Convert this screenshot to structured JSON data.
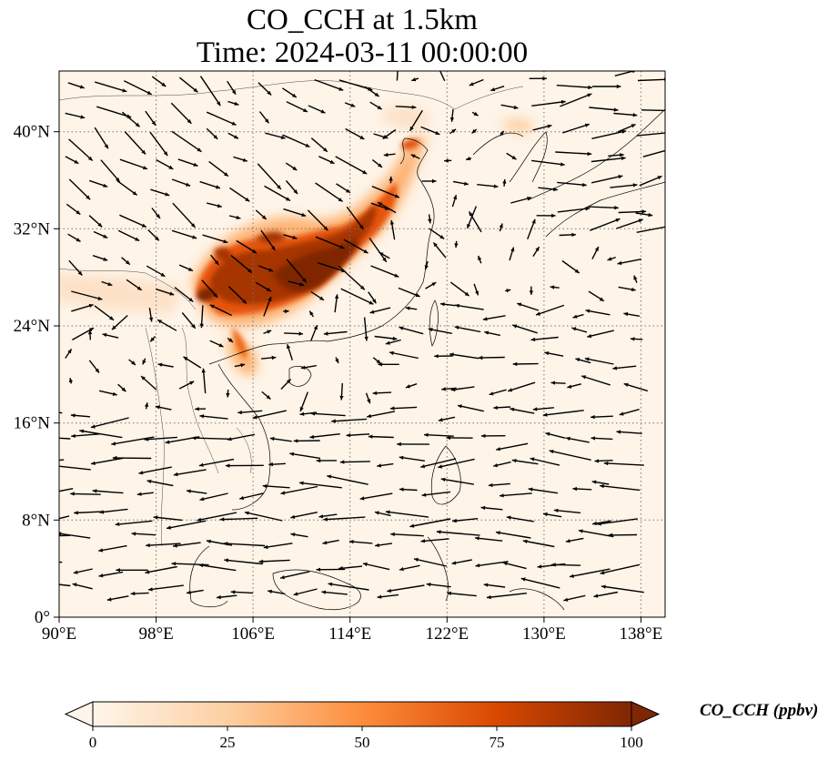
{
  "title_line1": "CO_CCH at 1.5km",
  "title_line2": "Time: 2024-03-11 00:00:00",
  "map": {
    "lon_range": [
      90,
      140
    ],
    "lat_range": [
      0,
      45
    ],
    "lon_ticks": [
      "90°E",
      "98°E",
      "106°E",
      "114°E",
      "122°E",
      "130°E",
      "138°E"
    ],
    "lat_ticks": [
      "0°",
      "8°N",
      "16°N",
      "24°N",
      "32°N",
      "40°N"
    ],
    "gridlines": "dotted",
    "field": "CO concentration (orange-red colormap)",
    "overlay": "wind vectors"
  },
  "colorbar": {
    "label": "CO_CCH (ppbv)",
    "ticks": [
      "0",
      "25",
      "50",
      "75",
      "100"
    ],
    "range": [
      0,
      100
    ],
    "colors": [
      "#fff5eb",
      "#fdd0a2",
      "#fd8d3c",
      "#d94801",
      "#7f2704"
    ]
  }
}
